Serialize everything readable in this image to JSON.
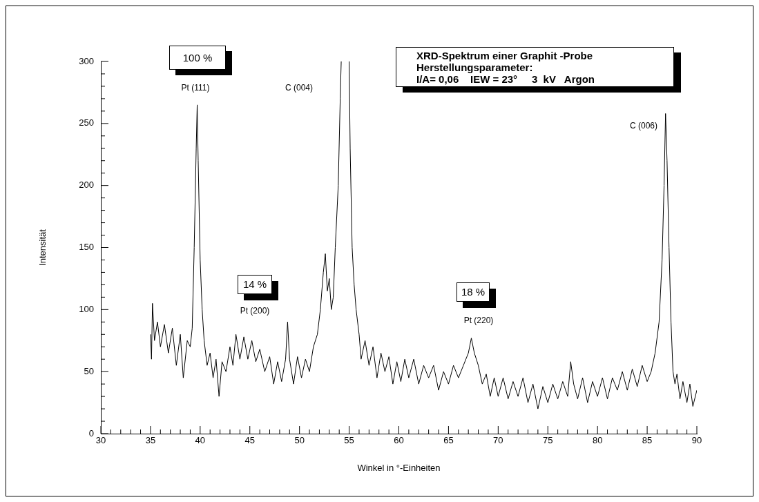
{
  "chart_data": {
    "type": "line",
    "title": "XRD-Spektrum einer Graphit -Probe",
    "subtitle": "Herstellungsparameter:",
    "xlabel": "Winkel in °-Einheiten",
    "ylabel": "Intensität",
    "annotations": [
      "I/A= 0,06    IEW = 23°     3  kV   Argon",
      "100 %",
      "Pt (111)",
      "C (004)",
      "14 %",
      "Pt (200)",
      "18 %",
      "Pt (220)",
      "C (006)"
    ],
    "x": [
      35.0,
      35.1,
      35.2,
      35.4,
      35.7,
      36.0,
      36.4,
      36.8,
      37.2,
      37.6,
      38.0,
      38.3,
      38.7,
      39.0,
      39.2,
      39.4,
      39.6,
      39.7,
      39.8,
      40.0,
      40.2,
      40.4,
      40.7,
      41.0,
      41.3,
      41.6,
      41.9,
      42.2,
      42.6,
      43.0,
      43.3,
      43.6,
      44.0,
      44.4,
      44.8,
      45.2,
      45.6,
      46.0,
      46.5,
      47.0,
      47.4,
      47.8,
      48.2,
      48.6,
      48.8,
      49.0,
      49.4,
      49.8,
      50.2,
      50.6,
      51.0,
      51.4,
      51.8,
      52.1,
      52.4,
      52.6,
      52.8,
      53.0,
      53.2,
      53.4,
      53.6,
      53.9,
      54.1,
      54.2,
      54.6,
      55.0,
      55.1,
      55.3,
      55.5,
      55.7,
      56.0,
      56.2,
      56.6,
      57.0,
      57.4,
      57.8,
      58.2,
      58.6,
      59.0,
      59.4,
      59.8,
      60.2,
      60.6,
      61.0,
      61.5,
      62.0,
      62.5,
      63.0,
      63.5,
      64.0,
      64.5,
      65.0,
      65.5,
      66.0,
      66.5,
      67.0,
      67.3,
      67.6,
      68.0,
      68.4,
      68.8,
      69.2,
      69.6,
      70.0,
      70.5,
      71.0,
      71.5,
      72.0,
      72.5,
      73.0,
      73.5,
      74.0,
      74.5,
      75.0,
      75.5,
      76.0,
      76.5,
      77.0,
      77.3,
      77.6,
      78.0,
      78.5,
      79.0,
      79.5,
      80.0,
      80.5,
      81.0,
      81.5,
      82.0,
      82.5,
      83.0,
      83.5,
      84.0,
      84.5,
      85.0,
      85.4,
      85.8,
      86.2,
      86.5,
      86.7,
      86.85,
      87.0,
      87.2,
      87.4,
      87.6,
      87.8,
      88.0,
      88.3,
      88.6,
      89.0,
      89.3,
      89.6,
      90.0
    ],
    "series": [
      {
        "color": "#000000",
        "values": [
          80,
          60,
          105,
          75,
          90,
          70,
          88,
          65,
          85,
          55,
          80,
          45,
          75,
          70,
          85,
          150,
          230,
          265,
          220,
          140,
          100,
          75,
          55,
          65,
          45,
          60,
          30,
          58,
          50,
          70,
          55,
          80,
          60,
          78,
          60,
          75,
          58,
          68,
          50,
          62,
          40,
          58,
          42,
          60,
          90,
          60,
          40,
          62,
          45,
          60,
          50,
          70,
          80,
          100,
          130,
          145,
          115,
          125,
          100,
          110,
          150,
          200,
          270,
          300,
          null,
          300,
          230,
          150,
          120,
          100,
          80,
          60,
          75,
          55,
          70,
          45,
          65,
          50,
          62,
          40,
          58,
          42,
          60,
          45,
          60,
          40,
          55,
          45,
          55,
          35,
          50,
          40,
          55,
          45,
          55,
          65,
          77,
          65,
          55,
          40,
          48,
          30,
          45,
          30,
          45,
          28,
          42,
          30,
          45,
          25,
          40,
          20,
          38,
          25,
          40,
          28,
          42,
          30,
          58,
          40,
          28,
          45,
          25,
          42,
          30,
          45,
          28,
          45,
          35,
          50,
          35,
          52,
          38,
          55,
          42,
          50,
          65,
          90,
          140,
          200,
          258,
          220,
          150,
          90,
          50,
          40,
          48,
          28,
          42,
          25,
          40,
          22,
          35
        ]
      }
    ],
    "xlim": [
      30,
      90
    ],
    "xticks": [
      30,
      {
        "value": 31,
        "label": null
      },
      {
        "value": 32,
        "label": null
      },
      {
        "value": 33,
        "label": null
      },
      {
        "value": 34,
        "label": null
      },
      35,
      {
        "value": 36,
        "label": null
      },
      {
        "value": 37,
        "label": null
      },
      {
        "value": 38,
        "label": null
      },
      {
        "value": 39,
        "label": null
      },
      40,
      {
        "value": 41,
        "label": null
      },
      {
        "value": 42,
        "label": null
      },
      {
        "value": 43,
        "label": null
      },
      {
        "value": 44,
        "label": null
      },
      45,
      {
        "value": 46,
        "label": null
      },
      {
        "value": 47,
        "label": null
      },
      {
        "value": 48,
        "label": null
      },
      {
        "value": 49,
        "label": null
      },
      50,
      {
        "value": 51,
        "label": null
      },
      {
        "value": 52,
        "label": null
      },
      {
        "value": 53,
        "label": null
      },
      {
        "value": 54,
        "label": null
      },
      55,
      {
        "value": 56,
        "label": null
      },
      {
        "value": 57,
        "label": null
      },
      {
        "value": 58,
        "label": null
      },
      {
        "value": 59,
        "label": null
      },
      60,
      {
        "value": 61,
        "label": null
      },
      {
        "value": 62,
        "label": null
      },
      {
        "value": 63,
        "label": null
      },
      {
        "value": 64,
        "label": null
      },
      65,
      {
        "value": 66,
        "label": null
      },
      {
        "value": 67,
        "label": null
      },
      {
        "value": 68,
        "label": null
      },
      {
        "value": 69,
        "label": null
      },
      70,
      {
        "value": 71,
        "label": null
      },
      {
        "value": 72,
        "label": null
      },
      {
        "value": 73,
        "label": null
      },
      {
        "value": 74,
        "label": null
      },
      75,
      {
        "value": 76,
        "label": null
      },
      {
        "value": 77,
        "label": null
      },
      {
        "value": 78,
        "label": null
      },
      {
        "value": 79,
        "label": null
      },
      80,
      {
        "value": 81,
        "label": null
      },
      {
        "value": 82,
        "label": null
      },
      {
        "value": 83,
        "label": null
      },
      {
        "value": 84,
        "label": null
      },
      85,
      {
        "value": 86,
        "label": null
      },
      {
        "value": 87,
        "label": null
      },
      {
        "value": 88,
        "label": null
      },
      {
        "value": 89,
        "label": null
      },
      90
    ],
    "ylim": [
      0,
      300
    ],
    "yticks": [
      0,
      {
        "value": 10,
        "label": null
      },
      {
        "value": 20,
        "label": null
      },
      {
        "value": 30,
        "label": null
      },
      {
        "value": 40,
        "label": null
      },
      50,
      {
        "value": 60,
        "label": null
      },
      {
        "value": 70,
        "label": null
      },
      {
        "value": 80,
        "label": null
      },
      {
        "value": 90,
        "label": null
      },
      100,
      {
        "value": 110,
        "label": null
      },
      {
        "value": 120,
        "label": null
      },
      {
        "value": 130,
        "label": null
      },
      {
        "value": 140,
        "label": null
      },
      150,
      {
        "value": 160,
        "label": null
      },
      {
        "value": 170,
        "label": null
      },
      {
        "value": 180,
        "label": null
      },
      {
        "value": 190,
        "label": null
      },
      200,
      {
        "value": 210,
        "label": null
      },
      {
        "value": 220,
        "label": null
      },
      {
        "value": 230,
        "label": null
      },
      {
        "value": 240,
        "label": null
      },
      250,
      {
        "value": 260,
        "label": null
      },
      {
        "value": 270,
        "label": null
      },
      {
        "value": 280,
        "label": null
      },
      {
        "value": 290,
        "label": null
      },
      300
    ],
    "grid": false,
    "legend": false,
    "marker": "none",
    "line_style": "solid"
  }
}
